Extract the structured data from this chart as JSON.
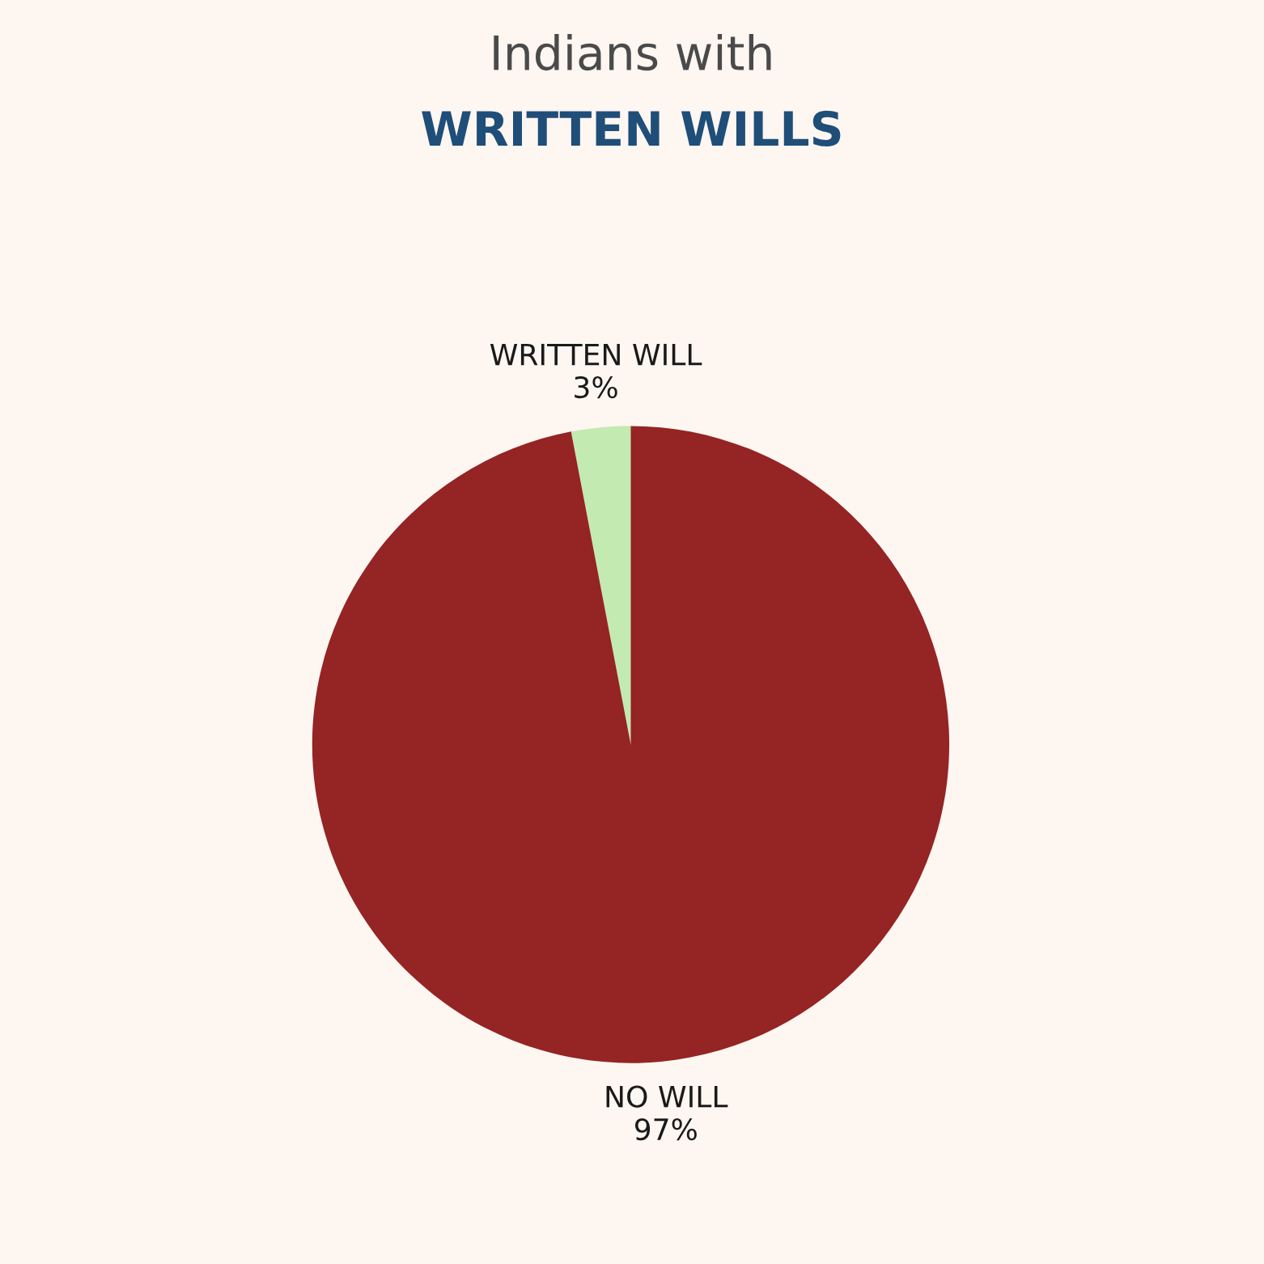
{
  "chart_data": {
    "type": "pie",
    "title": "Indians with",
    "subtitle": "WRITTEN WILLS",
    "categories": [
      "WRITTEN WILL",
      "NO WILL"
    ],
    "values": [
      3,
      97
    ],
    "colors": [
      "#c3eab0",
      "#952424"
    ],
    "value_labels": [
      "3%",
      "97%"
    ]
  }
}
